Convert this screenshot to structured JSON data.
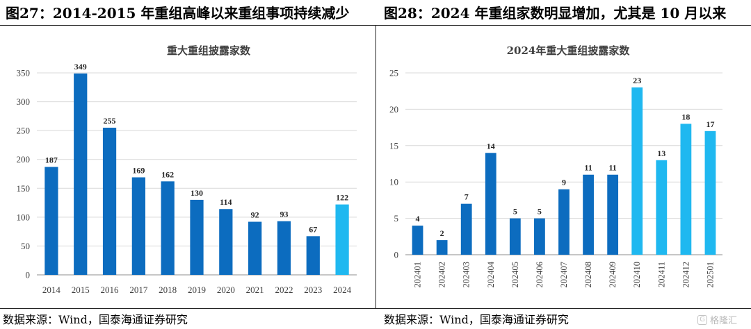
{
  "left_panel": {
    "figure_title": "图27：2014-2015 年重组高峰以来重组事项持续减少",
    "source": "数据来源：Wind，国泰海通证券研究"
  },
  "right_panel": {
    "figure_title": "图28：2024 年重组家数明显增加，尤其是 10 月以来",
    "source": "数据来源：Wind，国泰海通证券研究"
  },
  "watermark": {
    "text": "格隆汇",
    "logo_icon": "gelonghui-logo-icon"
  },
  "colors": {
    "dark_blue": "#0c6cbf",
    "light_blue": "#1fb8f0",
    "axis_text": "#404040",
    "grid": "#d9d9d9"
  },
  "chart_data": [
    {
      "type": "bar",
      "title": "重大重组披露家数",
      "categories": [
        "2014",
        "2015",
        "2016",
        "2017",
        "2018",
        "2019",
        "2020",
        "2021",
        "2022",
        "2023",
        "2024"
      ],
      "values": [
        187,
        349,
        255,
        169,
        162,
        130,
        114,
        92,
        93,
        67,
        122
      ],
      "highlight": [
        false,
        false,
        false,
        false,
        false,
        false,
        false,
        false,
        false,
        false,
        true
      ],
      "ylim": [
        0,
        350
      ],
      "yticks": [
        0,
        50,
        100,
        150,
        200,
        250,
        300,
        350
      ],
      "grid": true,
      "xlabel": "",
      "ylabel": ""
    },
    {
      "type": "bar",
      "title": "2024年重大重组披露家数",
      "categories": [
        "202401",
        "202402",
        "202403",
        "202404",
        "202405",
        "202406",
        "202407",
        "202408",
        "202409",
        "202410",
        "202411",
        "202412",
        "202501"
      ],
      "values": [
        4,
        2,
        7,
        14,
        5,
        5,
        9,
        11,
        11,
        23,
        13,
        18,
        17
      ],
      "highlight": [
        false,
        false,
        false,
        false,
        false,
        false,
        false,
        false,
        false,
        true,
        true,
        true,
        true
      ],
      "ylim": [
        0,
        25
      ],
      "yticks": [
        0,
        5,
        10,
        15,
        20,
        25
      ],
      "grid": true,
      "xlabel": "",
      "ylabel": ""
    }
  ]
}
